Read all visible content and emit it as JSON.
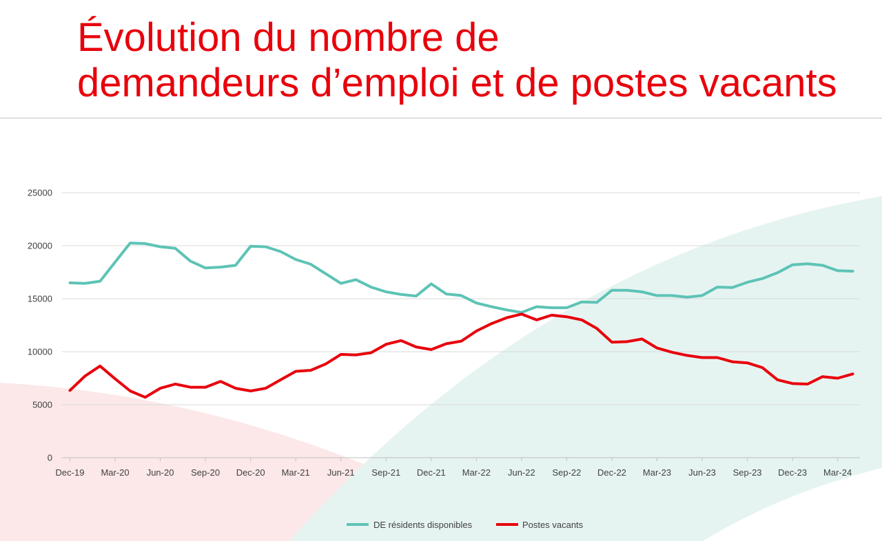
{
  "colors": {
    "title": "#e8000b",
    "series_1": "#5dc3b6",
    "series_2": "#e8000b",
    "grid": "#d9d9d9",
    "axis_text": "#404040",
    "bg_red_shape": "#fce8e8",
    "bg_teal_shape": "#e6f4f1"
  },
  "title": {
    "line1": "Évolution du nombre de",
    "line2": "demandeurs d’emploi et de postes vacants"
  },
  "chart_data": {
    "type": "line",
    "title": "Évolution du nombre de demandeurs d’emploi et de postes vacants",
    "xlabel": "",
    "ylabel": "",
    "ylim": [
      0,
      25000
    ],
    "yticks": [
      0,
      5000,
      10000,
      15000,
      20000,
      25000
    ],
    "grid": true,
    "legend_position": "bottom",
    "x_tick_labels": [
      "Dec-19",
      "Mar-20",
      "Jun-20",
      "Sep-20",
      "Dec-20",
      "Mar-21",
      "Jun-21",
      "Sep-21",
      "Dec-21",
      "Mar-22",
      "Jun-22",
      "Sep-22",
      "Dec-22",
      "Mar-23",
      "Jun-23",
      "Sep-23",
      "Dec-23",
      "Mar-24"
    ],
    "x": [
      "Dec-19",
      "Jan-20",
      "Feb-20",
      "Mar-20",
      "Apr-20",
      "May-20",
      "Jun-20",
      "Jul-20",
      "Aug-20",
      "Sep-20",
      "Oct-20",
      "Nov-20",
      "Dec-20",
      "Jan-21",
      "Feb-21",
      "Mar-21",
      "Apr-21",
      "May-21",
      "Jun-21",
      "Jul-21",
      "Aug-21",
      "Sep-21",
      "Oct-21",
      "Nov-21",
      "Dec-21",
      "Jan-22",
      "Feb-22",
      "Mar-22",
      "Apr-22",
      "May-22",
      "Jun-22",
      "Jul-22",
      "Aug-22",
      "Sep-22",
      "Oct-22",
      "Nov-22",
      "Dec-22",
      "Jan-23",
      "Feb-23",
      "Mar-23",
      "Apr-23",
      "May-23",
      "Jun-23",
      "Jul-23",
      "Aug-23",
      "Sep-23",
      "Oct-23",
      "Nov-23",
      "Dec-23",
      "Jan-24",
      "Feb-24",
      "Mar-24",
      "Apr-24"
    ],
    "series": [
      {
        "name": "DE résidents disponibles",
        "values": [
          16500,
          16450,
          16650,
          18450,
          20250,
          20200,
          19900,
          19750,
          18550,
          17900,
          17980,
          18150,
          19950,
          19900,
          19450,
          18700,
          18250,
          17350,
          16450,
          16800,
          16100,
          15650,
          15400,
          15250,
          16400,
          15450,
          15300,
          14600,
          14250,
          13950,
          13700,
          14250,
          14150,
          14150,
          14700,
          14650,
          15800,
          15800,
          15650,
          15300,
          15300,
          15150,
          15300,
          16100,
          16050,
          16550,
          16900,
          17450,
          18200,
          18300,
          18150,
          17650,
          17600
        ]
      },
      {
        "name": "Postes vacants",
        "values": [
          6350,
          7700,
          8650,
          7450,
          6300,
          5700,
          6550,
          6950,
          6650,
          6650,
          7200,
          6550,
          6300,
          6550,
          7350,
          8150,
          8250,
          8850,
          9750,
          9700,
          9900,
          10700,
          11050,
          10450,
          10200,
          10750,
          11000,
          11950,
          12650,
          13200,
          13550,
          13000,
          13450,
          13300,
          13000,
          12200,
          10900,
          10950,
          11200,
          10350,
          9950,
          9650,
          9450,
          9450,
          9050,
          8950,
          8500,
          7350,
          7000,
          6950,
          7650,
          7500,
          7900
        ]
      }
    ]
  }
}
